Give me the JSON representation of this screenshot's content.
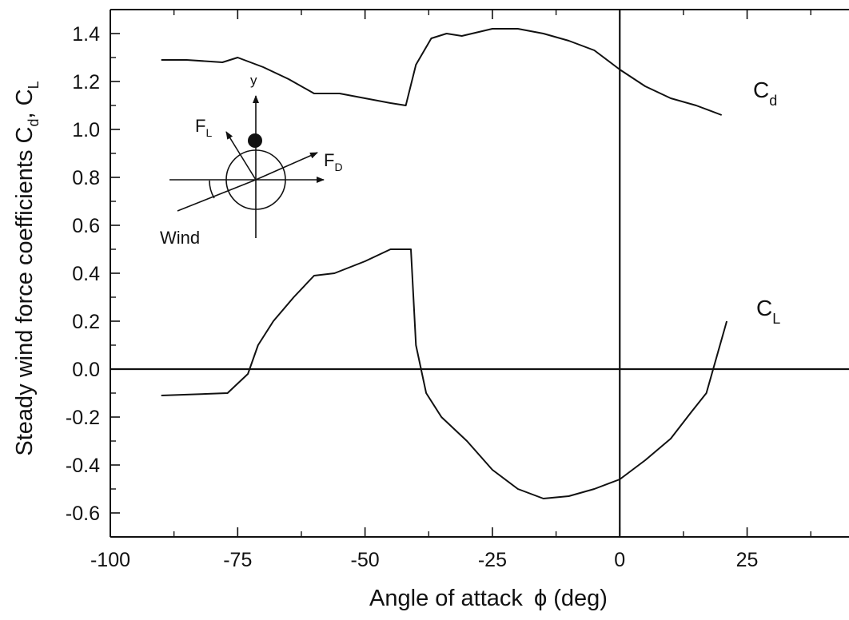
{
  "chart_data": {
    "type": "line",
    "xlabel": "Angle of attack",
    "xlabel_symbol": "ϕ",
    "xlabel_unit": "(deg)",
    "ylabel": "Steady wind force coefficients",
    "ylabel_cd_main": "C",
    "ylabel_cd_sub": "d",
    "ylabel_sep": ", ",
    "ylabel_cl_main": "C",
    "ylabel_cl_sub": "L",
    "xlim": [
      -100,
      45
    ],
    "ylim": [
      -0.7,
      1.5
    ],
    "xticks": [
      -100,
      -75,
      -50,
      -25,
      0,
      25
    ],
    "xtick_labels": [
      "-100",
      "-75",
      "-50",
      "-25",
      "0",
      "25"
    ],
    "yticks": [
      -0.6,
      -0.4,
      -0.2,
      0.0,
      0.2,
      0.4,
      0.6,
      0.8,
      1.0,
      1.2,
      1.4
    ],
    "ytick_labels": [
      "-0.6",
      "-0.4",
      "-0.2",
      "0.0",
      "0.2",
      "0.4",
      "0.6",
      "0.8",
      "1.0",
      "1.2",
      "1.4"
    ],
    "grid": false,
    "series": [
      {
        "name": "Cd",
        "label_main": "C",
        "label_sub": "d",
        "x": [
          -90,
          -85,
          -78,
          -75,
          -70,
          -65,
          -60,
          -55,
          -50,
          -45,
          -42,
          -40,
          -37,
          -34,
          -31,
          -25,
          -20,
          -15,
          -10,
          -5,
          0,
          5,
          10,
          15,
          20
        ],
        "y": [
          1.29,
          1.29,
          1.28,
          1.3,
          1.26,
          1.21,
          1.15,
          1.15,
          1.13,
          1.11,
          1.1,
          1.27,
          1.38,
          1.4,
          1.39,
          1.42,
          1.42,
          1.4,
          1.37,
          1.33,
          1.25,
          1.18,
          1.13,
          1.1,
          1.06
        ]
      },
      {
        "name": "CL",
        "label_main": "C",
        "label_sub": "L",
        "x": [
          -90,
          -77,
          -73,
          -71,
          -68,
          -64,
          -60,
          -56,
          -50,
          -45,
          -41,
          -40,
          -38,
          -35,
          -30,
          -25,
          -20,
          -15,
          -10,
          -5,
          0,
          5,
          10,
          14,
          17,
          21
        ],
        "y": [
          -0.11,
          -0.1,
          -0.02,
          0.1,
          0.2,
          0.3,
          0.39,
          0.4,
          0.45,
          0.5,
          0.5,
          0.1,
          -0.1,
          -0.2,
          -0.3,
          -0.42,
          -0.5,
          -0.54,
          -0.53,
          -0.5,
          -0.46,
          -0.38,
          -0.29,
          -0.18,
          -0.1,
          0.2
        ]
      }
    ],
    "reference_lines": {
      "x": 0,
      "y": 0
    },
    "inset": {
      "y_label": "y",
      "lift_main": "F",
      "lift_sub": "L",
      "drag_main": "F",
      "drag_sub": "D",
      "wind_label": "Wind"
    }
  }
}
